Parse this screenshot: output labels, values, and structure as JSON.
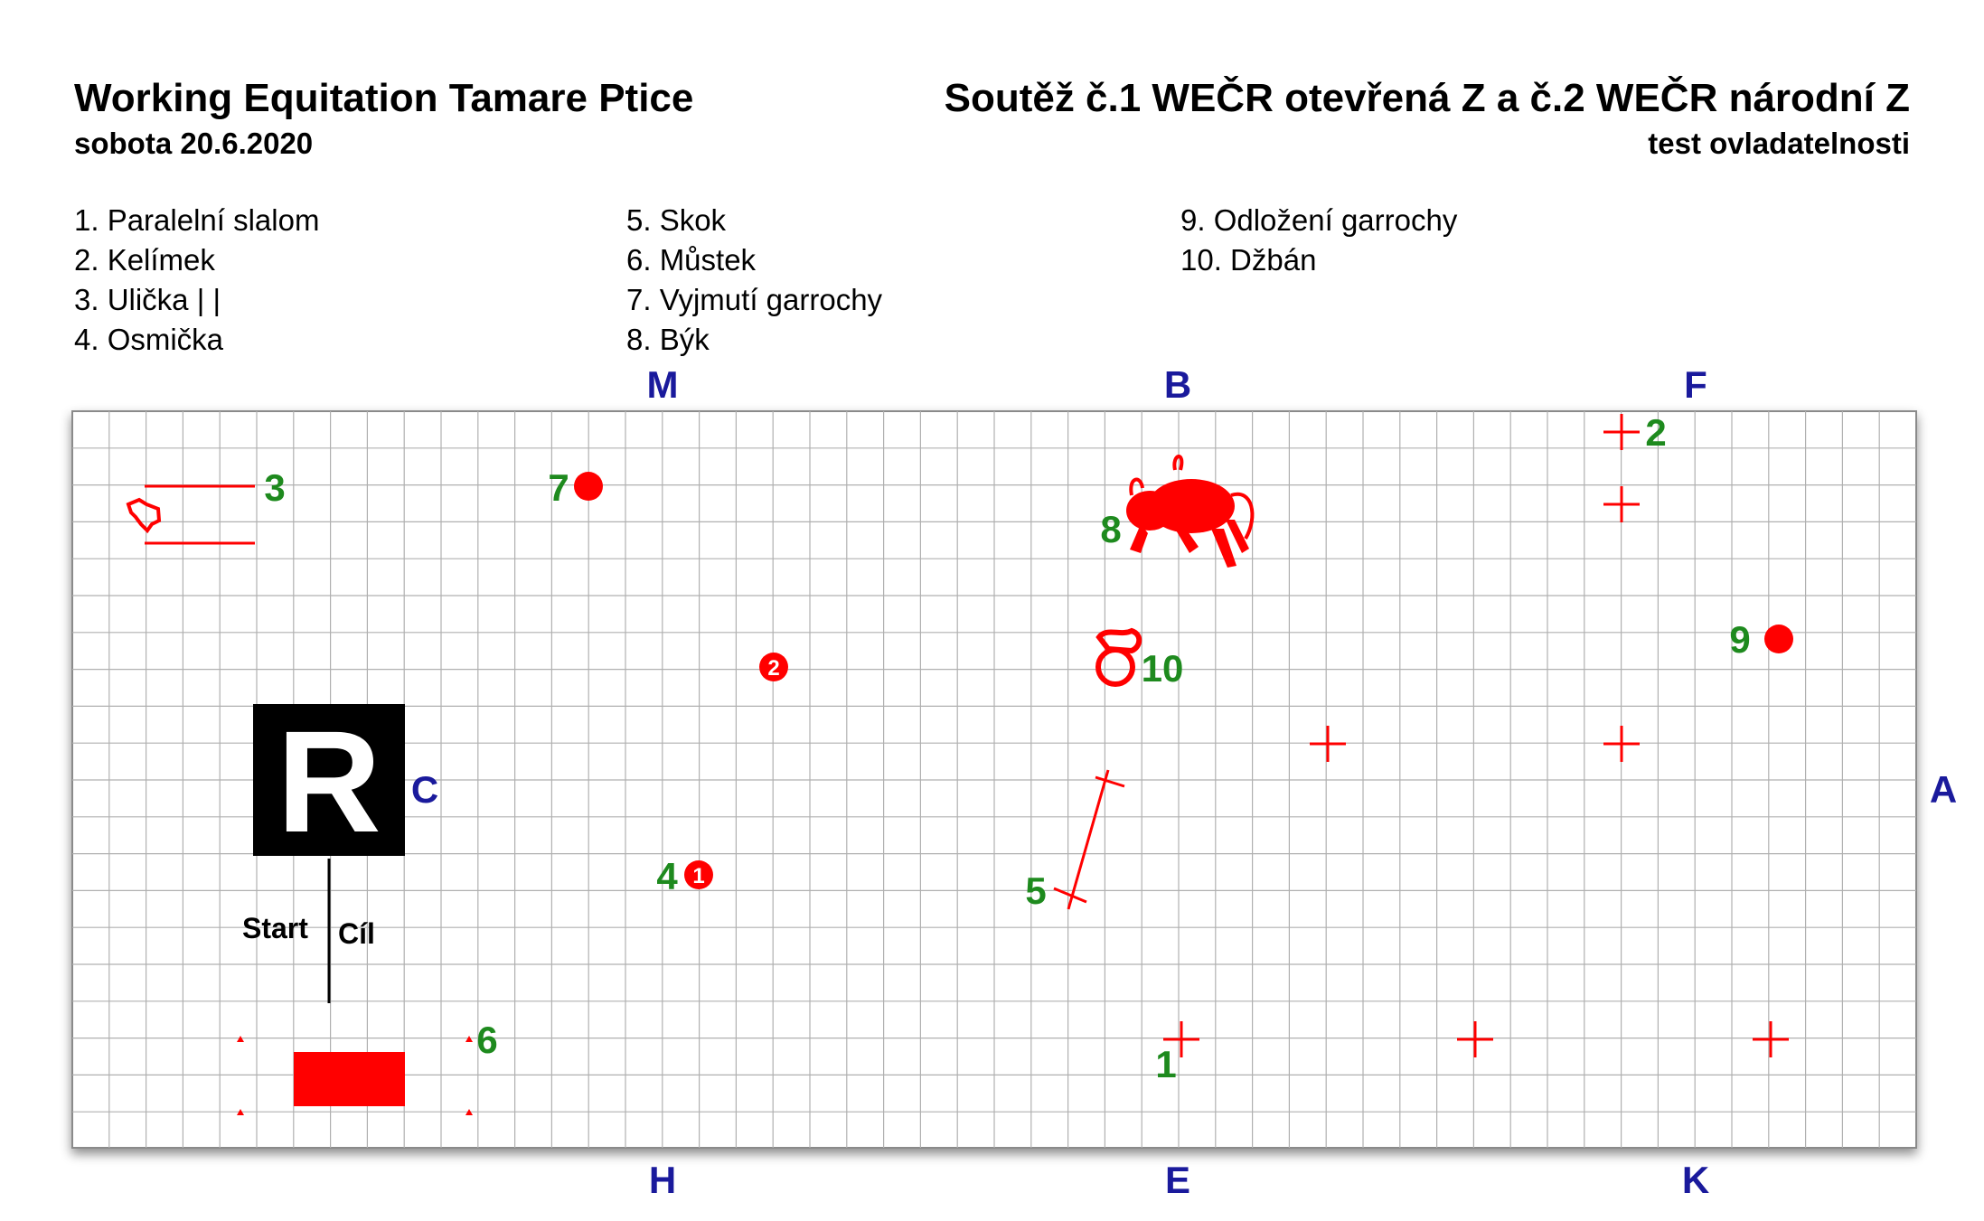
{
  "header": {
    "title": "Working Equitation Tamare Ptice",
    "date": "sobota 20.6.2020",
    "competition": "Soutěž č.1 WEČR otevřená Z a č.2 WEČR národní Z",
    "test_name": "test ovladatelnosti"
  },
  "legend": {
    "col1": [
      "1. Paralelní slalom",
      "2. Kelímek",
      "3. Ulička | |",
      "4. Osmička"
    ],
    "col2": [
      "5. Skok",
      "6. Můstek",
      "7. Vyjmutí garrochy",
      "8. Býk"
    ],
    "col3": [
      "9. Odložení garrochy",
      "10. Džbán"
    ]
  },
  "arena": {
    "letters": {
      "m": "M",
      "b": "B",
      "f": "F",
      "h": "H",
      "e": "E",
      "k": "K",
      "c": "C",
      "a": "A"
    },
    "judge_box": "R",
    "start_label": "Start",
    "finish_label": "Cíl",
    "obstacle_numbers": {
      "n1": "1",
      "n2": "2",
      "n3": "3",
      "n4": "4",
      "n5": "5",
      "n6": "6",
      "n7": "7",
      "n8": "8",
      "n9": "9",
      "n10": "10"
    },
    "marker_numbers": {
      "m1": "1",
      "m2": "2"
    }
  },
  "colors": {
    "letters": "#1a1a9c",
    "numbers": "#1e8a1e",
    "obstacles": "#ff0000",
    "grid": "#b0b0b0",
    "judge_box": "#000000"
  }
}
